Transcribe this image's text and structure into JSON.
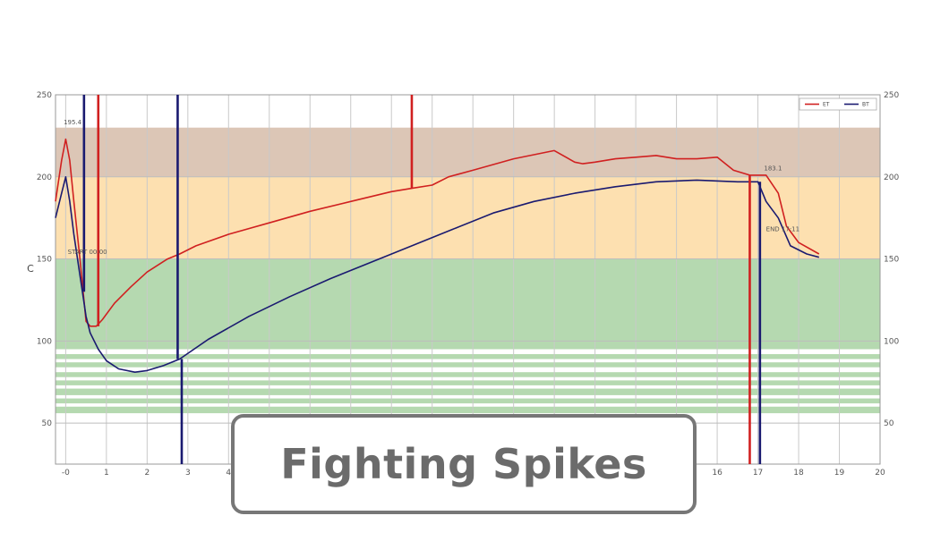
{
  "banner": {
    "title": "Fighting Spikes"
  },
  "chart_data": {
    "type": "line",
    "ylabel": "C",
    "xlim": [
      -0.25,
      20
    ],
    "ylim": [
      25,
      250
    ],
    "x_ticks": [
      "-0",
      "1",
      "2",
      "3",
      "4",
      "16",
      "17",
      "18",
      "19",
      "20"
    ],
    "x_tick_values": [
      0,
      1,
      2,
      3,
      4,
      16,
      17,
      18,
      19,
      20
    ],
    "y_ticks": [
      50,
      100,
      150,
      200,
      250
    ],
    "grid": true,
    "legend": {
      "position": "top-right",
      "entries": [
        "ET",
        "BT"
      ]
    },
    "bands": [
      {
        "from": 200,
        "to": 230,
        "color": "#dcc6b6"
      },
      {
        "from": 150,
        "to": 200,
        "color": "#fde0b0"
      },
      {
        "from": 100,
        "to": 150,
        "color": "#b5d9b0"
      },
      {
        "from": 95,
        "to": 100,
        "color": "#b5d9b0"
      },
      {
        "from": 89,
        "to": 92,
        "color": "#b5d9b0"
      },
      {
        "from": 84,
        "to": 87,
        "color": "#b5d9b0"
      },
      {
        "from": 78,
        "to": 81,
        "color": "#b5d9b0"
      },
      {
        "from": 73,
        "to": 76,
        "color": "#b5d9b0"
      },
      {
        "from": 67,
        "to": 71,
        "color": "#b5d9b0"
      },
      {
        "from": 62,
        "to": 65,
        "color": "#b5d9b0"
      },
      {
        "from": 56,
        "to": 60,
        "color": "#b5d9b0"
      }
    ],
    "series": [
      {
        "name": "ET",
        "color": "#d02020",
        "x": [
          -0.25,
          -0.1,
          0.0,
          0.1,
          0.2,
          0.35,
          0.5,
          0.6,
          0.75,
          0.9,
          1.2,
          1.6,
          2.0,
          2.5,
          2.8,
          3.2,
          4.0,
          5.0,
          6.0,
          7.0,
          8.0,
          8.5,
          9.0,
          9.4,
          10.0,
          11.0,
          12.0,
          12.5,
          12.7,
          13.0,
          13.5,
          14.0,
          14.5,
          15.0,
          15.5,
          16.0,
          16.4,
          16.8,
          17.0,
          17.2,
          17.5,
          17.7,
          18.0,
          18.5
        ],
        "y": [
          185,
          210,
          223,
          210,
          185,
          150,
          112,
          109,
          109,
          113,
          123,
          133,
          142,
          150,
          153,
          158,
          165,
          172,
          179,
          185,
          191,
          193,
          195,
          200,
          204,
          211,
          216,
          209,
          208,
          209,
          211,
          212,
          213,
          211,
          211,
          212,
          204,
          201,
          201,
          201,
          190,
          170,
          160,
          153
        ]
      },
      {
        "name": "BT",
        "color": "#1a1a70",
        "x": [
          -0.25,
          -0.1,
          0.0,
          0.1,
          0.2,
          0.35,
          0.5,
          0.6,
          0.8,
          1.0,
          1.3,
          1.7,
          2.0,
          2.4,
          2.8,
          3.5,
          4.5,
          5.5,
          6.5,
          7.5,
          8.5,
          9.5,
          10.5,
          11.5,
          12.5,
          13.5,
          14.5,
          15.5,
          16.5,
          17.0,
          17.2,
          17.5,
          17.8,
          18.2,
          18.5
        ],
        "y": [
          175,
          190,
          200,
          185,
          165,
          140,
          115,
          105,
          95,
          88,
          83,
          81,
          82,
          85,
          89,
          101,
          115,
          127,
          138,
          148,
          158,
          168,
          178,
          185,
          190,
          194,
          197,
          198,
          197,
          197,
          185,
          175,
          158,
          153,
          151
        ]
      }
    ],
    "spikes": [
      {
        "series": "BT",
        "x": 0.45,
        "y_from": 130,
        "y_to": 250
      },
      {
        "series": "ET",
        "x": 0.8,
        "y_from": 109,
        "y_to": 250
      },
      {
        "series": "BT",
        "x": 2.75,
        "y_from": 89,
        "y_to": 250
      },
      {
        "series": "BT",
        "x": 2.85,
        "y_from": 25,
        "y_to": 89
      },
      {
        "series": "ET",
        "x": 8.5,
        "y_from": 193,
        "y_to": 250
      },
      {
        "series": "ET",
        "x": 16.8,
        "y_from": 25,
        "y_to": 201
      },
      {
        "series": "BT",
        "x": 17.05,
        "y_from": 25,
        "y_to": 197
      }
    ],
    "annotations": [
      {
        "text": "195.4",
        "x": -0.05,
        "y": 232
      },
      {
        "text": "START 00:00",
        "x": 0.05,
        "y": 153
      },
      {
        "text": "183.1",
        "x": 17.15,
        "y": 204
      },
      {
        "text": "END 17:11",
        "x": 17.2,
        "y": 167
      }
    ]
  }
}
